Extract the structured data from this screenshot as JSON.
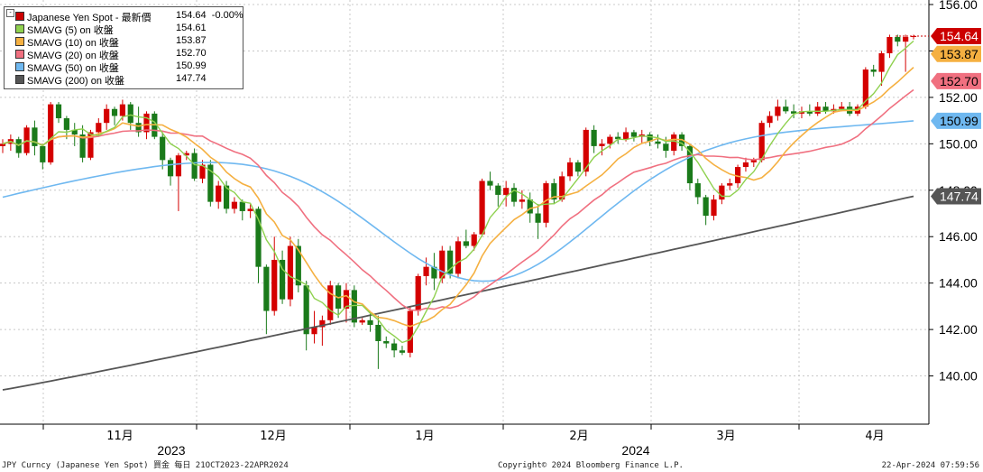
{
  "legend": {
    "title_name": "Japanese Yen Spot - 最新價",
    "title_value": "154.64",
    "title_change": "-0.00%",
    "items": [
      {
        "name": "Japanese Yen Spot - 最新價",
        "value": "154.64  -0.00%",
        "color": "#cc0000"
      },
      {
        "name": "SMAVG (5)  on 收盤",
        "value": "154.61",
        "color": "#8fd14f"
      },
      {
        "name": "SMAVG (10)  on 收盤",
        "value": "153.87",
        "color": "#f5b041"
      },
      {
        "name": "SMAVG (20)  on 收盤",
        "value": "152.70",
        "color": "#f07080"
      },
      {
        "name": "SMAVG (50)  on 收盤",
        "value": "150.99",
        "color": "#6fb8f0"
      },
      {
        "name": "SMAVG (200)  on 收盤",
        "value": "147.74",
        "color": "#555555"
      }
    ]
  },
  "footer": {
    "left": "JPY Curncy (Japanese Yen Spot) 買金  每日 21OCT2023-22APR2024",
    "center": "Copyright© 2024 Bloomberg Finance L.P.",
    "right": "22-Apr-2024 07:59:56"
  },
  "chart_data": {
    "type": "candlestick",
    "ylim": [
      138,
      156
    ],
    "yticks": [
      "140.00",
      "142.00",
      "144.00",
      "146.00",
      "148.00",
      "150.00",
      "152.00",
      "154.00",
      "156.00"
    ],
    "x_month_labels": [
      "11月",
      "12月",
      "1月",
      "2月",
      "3月",
      "4月"
    ],
    "x_year_labels": [
      "2023",
      "2024"
    ],
    "last_value_tags": [
      {
        "label": "154.64",
        "value": 154.64,
        "color": "#cc0000",
        "text_color": "#ffffff"
      },
      {
        "label": "153.87",
        "value": 153.87,
        "color": "#f5b041",
        "text_color": "#000000"
      },
      {
        "label": "152.70",
        "value": 152.7,
        "color": "#f07080",
        "text_color": "#000000"
      },
      {
        "label": "150.99",
        "value": 150.99,
        "color": "#6fb8f0",
        "text_color": "#000000"
      },
      {
        "label": "147.74",
        "value": 147.74,
        "color": "#555555",
        "text_color": "#ffffff"
      }
    ],
    "up_color": "#d40000",
    "down_color": "#1a7a1a",
    "candles": [
      [
        149.9,
        150.2,
        149.6,
        150.0
      ],
      [
        150.0,
        150.4,
        149.7,
        150.2
      ],
      [
        150.2,
        150.3,
        149.4,
        149.6
      ],
      [
        149.6,
        150.8,
        149.5,
        150.7
      ],
      [
        150.7,
        151.0,
        149.5,
        149.9
      ],
      [
        149.9,
        150.0,
        148.9,
        149.2
      ],
      [
        149.2,
        151.8,
        149.1,
        151.7
      ],
      [
        151.7,
        151.8,
        150.9,
        151.1
      ],
      [
        151.1,
        151.2,
        150.2,
        150.6
      ],
      [
        150.6,
        150.9,
        149.9,
        150.4
      ],
      [
        150.4,
        150.8,
        149.2,
        149.4
      ],
      [
        149.4,
        150.6,
        149.3,
        150.5
      ],
      [
        150.5,
        151.1,
        150.3,
        150.9
      ],
      [
        150.9,
        151.7,
        150.6,
        151.5
      ],
      [
        151.5,
        151.6,
        150.8,
        151.2
      ],
      [
        151.2,
        151.9,
        151.0,
        151.7
      ],
      [
        151.7,
        151.8,
        150.6,
        150.9
      ],
      [
        150.9,
        151.6,
        150.3,
        150.5
      ],
      [
        150.5,
        151.4,
        150.2,
        151.3
      ],
      [
        151.3,
        151.4,
        150.2,
        150.3
      ],
      [
        150.3,
        150.5,
        148.9,
        149.3
      ],
      [
        149.3,
        149.4,
        148.2,
        148.6
      ],
      [
        148.6,
        149.6,
        147.1,
        149.5
      ],
      [
        149.5,
        149.7,
        149.3,
        149.6
      ],
      [
        149.6,
        149.8,
        148.4,
        148.5
      ],
      [
        148.5,
        149.3,
        148.3,
        149.1
      ],
      [
        149.1,
        149.3,
        147.3,
        147.5
      ],
      [
        147.5,
        148.4,
        147.2,
        148.2
      ],
      [
        148.2,
        148.4,
        147.0,
        147.2
      ],
      [
        147.2,
        147.7,
        147.0,
        147.5
      ],
      [
        147.5,
        147.6,
        146.7,
        147.1
      ],
      [
        147.1,
        147.4,
        146.8,
        147.2
      ],
      [
        147.2,
        147.3,
        144.0,
        144.7
      ],
      [
        144.7,
        144.8,
        141.8,
        142.8
      ],
      [
        142.8,
        146.0,
        142.6,
        145.0
      ],
      [
        145.0,
        145.4,
        143.1,
        143.3
      ],
      [
        143.3,
        146.0,
        143.0,
        145.6
      ],
      [
        145.6,
        145.9,
        143.6,
        143.9
      ],
      [
        143.9,
        144.1,
        141.1,
        141.8
      ],
      [
        141.8,
        142.8,
        141.4,
        142.1
      ],
      [
        142.1,
        142.6,
        141.3,
        142.4
      ],
      [
        142.4,
        144.1,
        142.2,
        143.9
      ],
      [
        143.9,
        144.0,
        142.5,
        142.9
      ],
      [
        142.9,
        144.0,
        142.3,
        143.7
      ],
      [
        143.7,
        143.9,
        142.1,
        142.3
      ],
      [
        142.3,
        142.5,
        142.2,
        142.4
      ],
      [
        142.4,
        142.8,
        141.9,
        142.2
      ],
      [
        142.2,
        142.6,
        140.3,
        141.5
      ],
      [
        141.5,
        141.7,
        141.2,
        141.4
      ],
      [
        141.4,
        141.6,
        140.8,
        141.1
      ],
      [
        141.1,
        141.3,
        140.9,
        141.0
      ],
      [
        141.0,
        143.0,
        140.8,
        142.8
      ],
      [
        142.8,
        144.4,
        142.6,
        144.3
      ],
      [
        144.3,
        145.1,
        143.9,
        144.7
      ],
      [
        144.7,
        145.3,
        143.7,
        144.2
      ],
      [
        144.2,
        145.6,
        144.0,
        145.4
      ],
      [
        145.4,
        145.6,
        144.2,
        144.4
      ],
      [
        144.4,
        146.0,
        144.2,
        145.8
      ],
      [
        145.8,
        146.3,
        145.5,
        145.6
      ],
      [
        145.6,
        146.2,
        145.4,
        146.1
      ],
      [
        146.1,
        148.5,
        146.0,
        148.4
      ],
      [
        148.4,
        148.8,
        148.0,
        148.2
      ],
      [
        148.2,
        148.3,
        147.3,
        147.8
      ],
      [
        147.8,
        148.4,
        147.3,
        148.1
      ],
      [
        148.1,
        148.3,
        147.3,
        147.5
      ],
      [
        147.5,
        148.0,
        147.2,
        147.6
      ],
      [
        147.6,
        147.9,
        146.6,
        147.0
      ],
      [
        147.0,
        147.4,
        145.9,
        146.6
      ],
      [
        146.6,
        148.4,
        146.4,
        148.3
      ],
      [
        148.3,
        148.5,
        147.4,
        147.6
      ],
      [
        147.6,
        148.8,
        147.5,
        148.6
      ],
      [
        148.6,
        149.4,
        148.4,
        149.2
      ],
      [
        149.2,
        149.3,
        148.6,
        148.8
      ],
      [
        148.8,
        150.7,
        148.6,
        150.6
      ],
      [
        150.6,
        150.8,
        149.6,
        149.9
      ],
      [
        149.9,
        150.2,
        149.5,
        150.0
      ],
      [
        150.0,
        150.4,
        149.8,
        150.3
      ],
      [
        150.3,
        150.5,
        150.0,
        150.2
      ],
      [
        150.2,
        150.7,
        150.1,
        150.5
      ],
      [
        150.5,
        150.6,
        150.1,
        150.3
      ],
      [
        150.3,
        150.6,
        150.0,
        150.4
      ],
      [
        150.4,
        150.5,
        149.9,
        150.1
      ],
      [
        150.1,
        150.4,
        149.8,
        150.0
      ],
      [
        150.0,
        150.3,
        149.4,
        149.7
      ],
      [
        149.7,
        150.5,
        149.5,
        150.4
      ],
      [
        150.4,
        150.5,
        149.7,
        149.9
      ],
      [
        149.9,
        150.0,
        148.0,
        148.3
      ],
      [
        148.3,
        148.5,
        147.4,
        147.7
      ],
      [
        147.7,
        147.8,
        146.5,
        146.9
      ],
      [
        146.9,
        147.8,
        146.7,
        147.6
      ],
      [
        147.6,
        148.3,
        147.4,
        148.2
      ],
      [
        148.2,
        148.5,
        148.0,
        148.3
      ],
      [
        148.3,
        149.1,
        148.1,
        149.0
      ],
      [
        149.0,
        149.4,
        148.8,
        149.2
      ],
      [
        149.2,
        149.4,
        149.0,
        149.3
      ],
      [
        149.3,
        151.0,
        149.2,
        150.9
      ],
      [
        150.9,
        151.4,
        150.7,
        151.2
      ],
      [
        151.2,
        151.9,
        151.0,
        151.6
      ],
      [
        151.6,
        151.9,
        151.3,
        151.4
      ],
      [
        151.4,
        151.7,
        151.1,
        151.3
      ],
      [
        151.3,
        151.6,
        151.1,
        151.4
      ],
      [
        151.4,
        151.7,
        151.2,
        151.3
      ],
      [
        151.3,
        151.8,
        151.2,
        151.6
      ],
      [
        151.6,
        151.8,
        151.3,
        151.4
      ],
      [
        151.4,
        151.7,
        151.3,
        151.5
      ],
      [
        151.5,
        151.8,
        151.4,
        151.6
      ],
      [
        151.6,
        151.8,
        151.2,
        151.3
      ],
      [
        151.3,
        151.7,
        151.2,
        151.6
      ],
      [
        151.6,
        153.3,
        151.5,
        153.2
      ],
      [
        153.2,
        153.4,
        152.9,
        153.1
      ],
      [
        153.1,
        154.0,
        152.5,
        153.9
      ],
      [
        153.9,
        154.7,
        153.7,
        154.6
      ],
      [
        154.6,
        154.7,
        154.2,
        154.4
      ],
      [
        154.4,
        154.7,
        153.1,
        154.6
      ],
      [
        154.6,
        154.7,
        154.5,
        154.64
      ]
    ],
    "moving_averages": [
      {
        "name": "SMAVG (5)",
        "color": "#8fd14f",
        "x_start": 0,
        "x_end": 1,
        "points": [
          [
            0.0,
            149.9
          ],
          [
            0.05,
            150.4
          ],
          [
            0.08,
            150.6
          ],
          [
            0.12,
            150.9
          ],
          [
            0.16,
            151.1
          ],
          [
            0.19,
            150.8
          ],
          [
            0.22,
            149.6
          ],
          [
            0.25,
            148.8
          ],
          [
            0.28,
            147.6
          ],
          [
            0.32,
            145.0
          ],
          [
            0.35,
            143.8
          ],
          [
            0.38,
            142.9
          ],
          [
            0.41,
            142.6
          ],
          [
            0.43,
            142.0
          ],
          [
            0.46,
            141.5
          ],
          [
            0.48,
            142.6
          ],
          [
            0.51,
            143.6
          ],
          [
            0.53,
            144.6
          ],
          [
            0.56,
            145.3
          ],
          [
            0.58,
            147.0
          ],
          [
            0.61,
            147.8
          ],
          [
            0.64,
            147.6
          ],
          [
            0.67,
            147.2
          ],
          [
            0.7,
            148.1
          ],
          [
            0.73,
            149.4
          ],
          [
            0.76,
            150.0
          ],
          [
            0.8,
            150.3
          ],
          [
            0.83,
            150.2
          ],
          [
            0.86,
            149.2
          ],
          [
            0.89,
            147.6
          ],
          [
            0.92,
            148.1
          ],
          [
            0.95,
            149.0
          ],
          [
            0.98,
            150.8
          ],
          [
            1.01,
            151.4
          ],
          [
            1.05,
            151.4
          ],
          [
            1.09,
            151.5
          ],
          [
            1.12,
            152.3
          ],
          [
            1.16,
            153.6
          ],
          [
            1.19,
            154.4
          ],
          [
            1.22,
            154.61
          ]
        ]
      }
    ]
  }
}
